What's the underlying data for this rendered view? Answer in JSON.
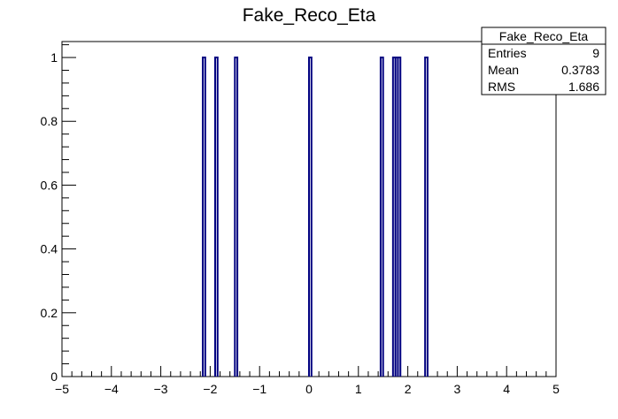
{
  "chart_data": {
    "type": "bar",
    "title": "Fake_Reco_Eta",
    "xlabel": "",
    "ylabel": "",
    "xlim": [
      -5,
      5
    ],
    "ylim": [
      0,
      1.05
    ],
    "x_ticks": [
      "−5",
      "−4",
      "−3",
      "−2",
      "−1",
      "0",
      "1",
      "2",
      "3",
      "4",
      "5"
    ],
    "y_ticks": [
      "0",
      "0.2",
      "0.4",
      "0.6",
      "0.8",
      "1"
    ],
    "bin_width": 0.05,
    "bars": [
      {
        "x": -2.15,
        "value": 1
      },
      {
        "x": -1.9,
        "value": 1
      },
      {
        "x": -1.5,
        "value": 1
      },
      {
        "x": 0.0,
        "value": 1
      },
      {
        "x": 1.45,
        "value": 1
      },
      {
        "x": 1.7,
        "value": 1
      },
      {
        "x": 1.75,
        "value": 1
      },
      {
        "x": 1.8,
        "value": 1
      },
      {
        "x": 2.35,
        "value": 1
      }
    ],
    "line_color": "#000080",
    "grid": false,
    "legend": "top-right"
  },
  "stats": {
    "title": "Fake_Reco_Eta",
    "rows": [
      {
        "label": "Entries",
        "value": "9"
      },
      {
        "label": "Mean",
        "value": "0.3783"
      },
      {
        "label": "RMS",
        "value": "1.686"
      }
    ]
  }
}
